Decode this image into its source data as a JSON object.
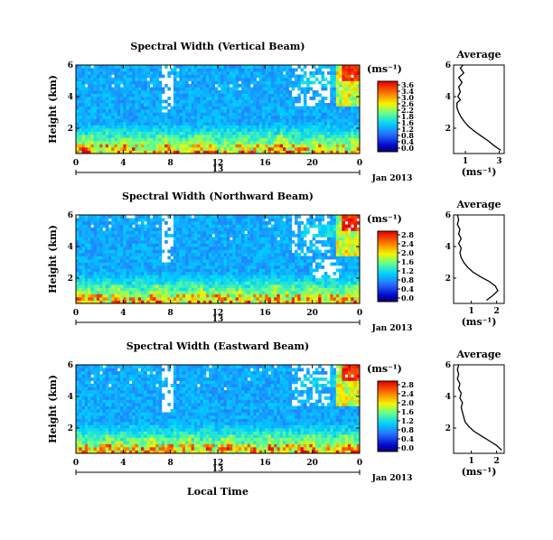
{
  "figure": {
    "date_label": "Jan 2013",
    "day_label": "13",
    "xlabel": "Local Time"
  },
  "chart_data": [
    {
      "type": "heatmap",
      "title": "Spectral Width (Vertical Beam)",
      "ylabel": "Height (km)",
      "x_ticks": [
        "0",
        "4",
        "8",
        "12",
        "16",
        "20",
        "0"
      ],
      "xlim": [
        0,
        24
      ],
      "y_ticks": [
        "6",
        "4",
        "2"
      ],
      "ylim": [
        0.4,
        6.0
      ],
      "colorbar": {
        "unit": "(ms⁻¹)",
        "ticks": [
          "3.6",
          "3.4",
          "3.0",
          "2.6",
          "2.2",
          "1.8",
          "1.6",
          "1.2",
          "0.8",
          "0.4",
          "0.0"
        ],
        "range": [
          0,
          3.6
        ]
      },
      "average": {
        "title": "Average",
        "xlabel": "(ms⁻¹)",
        "x_ticks": [
          "1",
          "3"
        ],
        "y_ticks": [
          "6",
          "4",
          "2"
        ],
        "xlim": [
          0.3,
          3.3
        ],
        "ylim": [
          0.4,
          6.0
        ],
        "profile": [
          [
            0.6,
            3.1
          ],
          [
            0.9,
            2.7
          ],
          [
            1.2,
            2.35
          ],
          [
            1.5,
            1.95
          ],
          [
            1.8,
            1.55
          ],
          [
            2.1,
            1.2
          ],
          [
            2.4,
            0.95
          ],
          [
            2.7,
            0.75
          ],
          [
            3.0,
            0.6
          ],
          [
            3.3,
            0.5
          ],
          [
            3.6,
            0.5
          ],
          [
            3.8,
            0.7
          ],
          [
            4.0,
            0.55
          ],
          [
            4.3,
            0.7
          ],
          [
            4.6,
            0.6
          ],
          [
            4.9,
            0.8
          ],
          [
            5.2,
            0.6
          ],
          [
            5.5,
            0.9
          ],
          [
            5.8,
            0.7
          ],
          [
            6.0,
            0.85
          ]
        ]
      }
    },
    {
      "type": "heatmap",
      "title": "Spectral Width (Northward Beam)",
      "ylabel": "Height (km)",
      "x_ticks": [
        "0",
        "4",
        "8",
        "12",
        "16",
        "20",
        "0"
      ],
      "xlim": [
        0,
        24
      ],
      "y_ticks": [
        "6",
        "4",
        "2"
      ],
      "ylim": [
        0.4,
        6.0
      ],
      "colorbar": {
        "unit": "(ms⁻¹)",
        "ticks": [
          "2.8",
          "2.4",
          "2.0",
          "1.6",
          "1.2",
          "0.8",
          "0.4",
          "0.0"
        ],
        "range": [
          0,
          2.8
        ]
      },
      "average": {
        "title": "Average",
        "xlabel": "(ms⁻¹)",
        "x_ticks": [
          "1",
          "2"
        ],
        "y_ticks": [
          "6",
          "4",
          "2"
        ],
        "xlim": [
          0.3,
          2.3
        ],
        "ylim": [
          0.4,
          6.0
        ],
        "profile": [
          [
            0.6,
            1.6
          ],
          [
            0.9,
            1.85
          ],
          [
            1.2,
            2.05
          ],
          [
            1.5,
            1.95
          ],
          [
            1.8,
            1.7
          ],
          [
            2.1,
            1.35
          ],
          [
            2.4,
            1.05
          ],
          [
            2.7,
            0.85
          ],
          [
            3.0,
            0.7
          ],
          [
            3.3,
            0.6
          ],
          [
            3.6,
            0.55
          ],
          [
            3.9,
            0.6
          ],
          [
            4.2,
            0.5
          ],
          [
            4.5,
            0.6
          ],
          [
            4.8,
            0.5
          ],
          [
            5.1,
            0.55
          ],
          [
            5.4,
            0.45
          ],
          [
            5.7,
            0.5
          ],
          [
            6.0,
            0.45
          ]
        ]
      }
    },
    {
      "type": "heatmap",
      "title": "Spectral Width (Eastward Beam)",
      "ylabel": "Height (km)",
      "x_ticks": [
        "0",
        "4",
        "8",
        "12",
        "16",
        "20",
        "0"
      ],
      "xlim": [
        0,
        24
      ],
      "y_ticks": [
        "6",
        "4",
        "2"
      ],
      "ylim": [
        0.4,
        6.0
      ],
      "colorbar": {
        "unit": "(ms⁻¹)",
        "ticks": [
          "2.8",
          "2.4",
          "2.0",
          "1.6",
          "1.2",
          "0.8",
          "0.4",
          "0.0"
        ],
        "range": [
          0,
          2.8
        ]
      },
      "average": {
        "title": "Average",
        "xlabel": "(ms⁻¹)",
        "x_ticks": [
          "1",
          "2"
        ],
        "y_ticks": [
          "6",
          "4",
          "2"
        ],
        "xlim": [
          0.3,
          2.3
        ],
        "ylim": [
          0.4,
          6.0
        ],
        "profile": [
          [
            0.6,
            2.2
          ],
          [
            0.9,
            2.0
          ],
          [
            1.2,
            1.7
          ],
          [
            1.5,
            1.4
          ],
          [
            1.8,
            1.1
          ],
          [
            2.1,
            0.9
          ],
          [
            2.4,
            0.75
          ],
          [
            2.7,
            0.7
          ],
          [
            3.0,
            0.65
          ],
          [
            3.3,
            0.6
          ],
          [
            3.6,
            0.65
          ],
          [
            3.9,
            0.55
          ],
          [
            4.2,
            0.6
          ],
          [
            4.5,
            0.5
          ],
          [
            4.8,
            0.55
          ],
          [
            5.1,
            0.45
          ],
          [
            5.4,
            0.5
          ],
          [
            5.7,
            0.45
          ],
          [
            6.0,
            0.5
          ]
        ]
      }
    }
  ]
}
